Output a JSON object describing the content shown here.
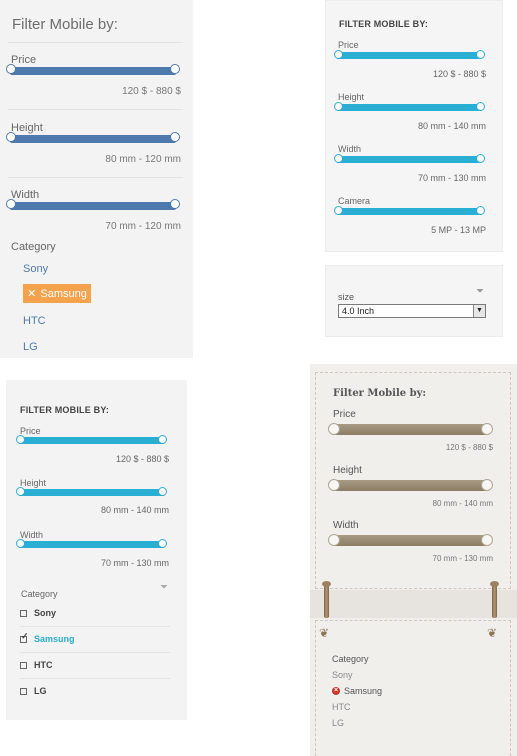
{
  "panel1": {
    "title": "Filter Mobile by:",
    "price_label": "Price",
    "price_value": "120 $ - 880 $",
    "height_label": "Height",
    "height_value": "80 mm - 120 mm",
    "width_label": "Width",
    "width_value": "70 mm - 120 mm",
    "category_label": "Category",
    "categories": [
      "Sony",
      "Samsung",
      "HTC",
      "LG"
    ],
    "active_category": "Samsung",
    "remove_glyph": "✕",
    "accent_color": "#4e79ad",
    "active_color": "#f5a24c"
  },
  "panel2": {
    "title": "FILTER MOBILE BY:",
    "price_label": "Price",
    "price_value": "120 $ - 880 $",
    "height_label": "Height",
    "height_value": "80 mm - 140 mm",
    "width_label": "Width",
    "width_value": "70 mm - 130 mm",
    "camera_label": "Camera",
    "camera_value": "5 MP - 13 MP",
    "size_label": "size",
    "size_selected": "4.0 Inch",
    "accent_color": "#2aaed3"
  },
  "panel3": {
    "title": "FILTER MOBILE BY:",
    "price_label": "Price",
    "price_value": "120 $ - 880 $",
    "height_label": "Height",
    "height_value": "80 mm - 140 mm",
    "width_label": "Width",
    "width_value": "70 mm - 130 mm",
    "category_label": "Category",
    "categories": [
      "Sony",
      "Samsung",
      "HTC",
      "LG"
    ],
    "active_category": "Samsung",
    "accent_color": "#2aaed3"
  },
  "panel4": {
    "title": "Filter Mobile by:",
    "price_label": "Price",
    "price_value": "120 $ - 880 $",
    "height_label": "Height",
    "height_value": "80 mm - 140 mm",
    "width_label": "Width",
    "width_value": "70 mm - 130 mm",
    "category_label": "Category",
    "categories": [
      "Sony",
      "Samsung",
      "HTC",
      "LG"
    ],
    "active_category": "Samsung",
    "accent_color": "#8c7c64",
    "remove_color": "#c8372d"
  },
  "icons": {
    "funnel": "filter-funnel-icon",
    "checkmark": "checkmark-icon",
    "remove": "remove-x-icon"
  }
}
